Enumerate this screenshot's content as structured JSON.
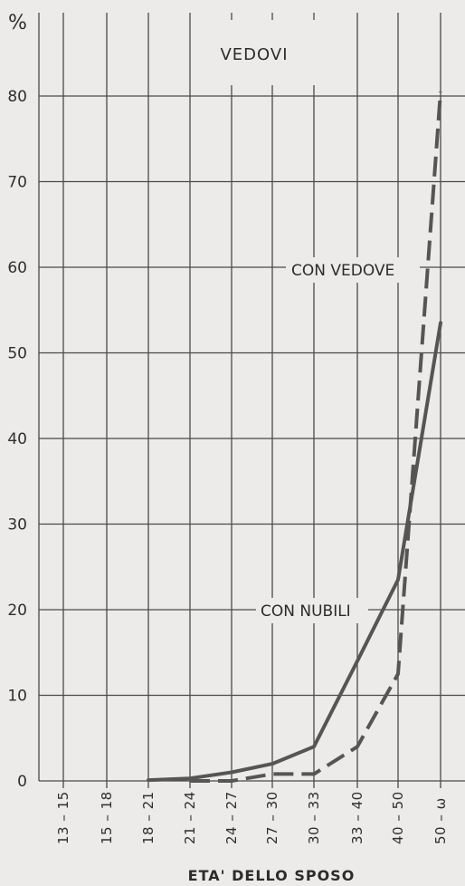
{
  "chart_data": {
    "type": "line",
    "title": "VEDOVI",
    "ylabel": "%",
    "xlabel": "ETA' DELLO SPOSO",
    "categories": [
      "13-15",
      "15-18",
      "18-21",
      "21-24",
      "24-27",
      "27-30",
      "30-33",
      "33-40",
      "40-50",
      "50-ω"
    ],
    "yticks": [
      0,
      10,
      20,
      30,
      40,
      50,
      60,
      70,
      80
    ],
    "ylim": [
      0,
      90
    ],
    "grid": true,
    "series": [
      {
        "name": "CON NUBILI",
        "style": "solid",
        "color": "#555555",
        "values": [
          null,
          null,
          0.1,
          0.3,
          1.0,
          2.0,
          4.0,
          14.0,
          23.5,
          53.5
        ]
      },
      {
        "name": "CON VEDOVE",
        "style": "dashed",
        "color": "#555555",
        "values": [
          null,
          null,
          null,
          0.0,
          0.0,
          0.8,
          0.8,
          4.0,
          12.5,
          80.5
        ]
      }
    ]
  }
}
